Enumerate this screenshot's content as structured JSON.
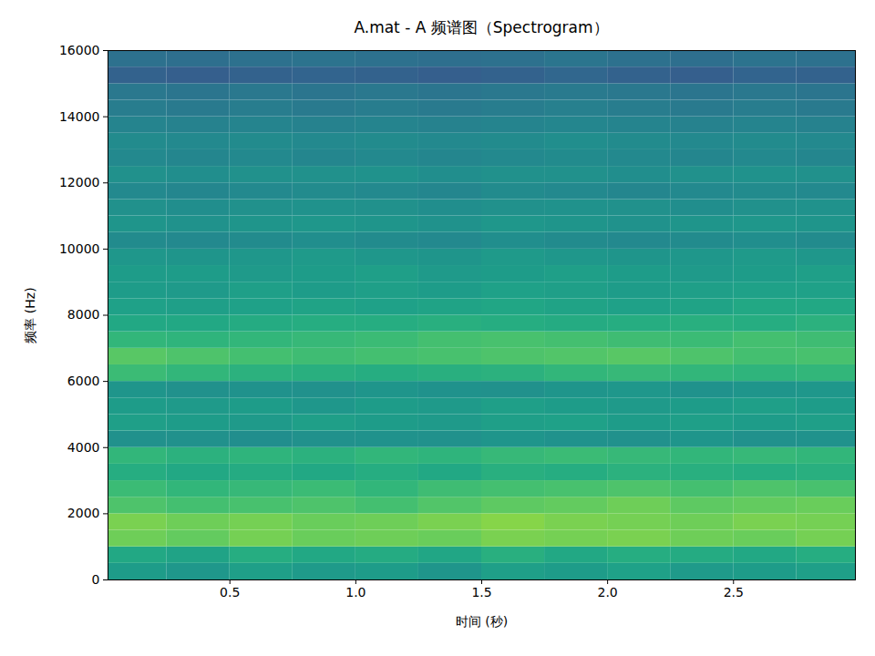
{
  "chart_data": {
    "type": "heatmap",
    "title": "A.mat - A 频谱图（Spectrogram）",
    "x_label": "时间 (秒)",
    "y_label": "频率 (Hz)",
    "xlim": [
      0.016,
      2.984
    ],
    "ylim": [
      0,
      16000
    ],
    "xticks": [
      {
        "value": 0.5,
        "label": "0.5"
      },
      {
        "value": 1,
        "label": "1.0"
      },
      {
        "value": 1.5,
        "label": "1.5"
      },
      {
        "value": 2,
        "label": "2.0"
      },
      {
        "value": 2.5,
        "label": "2.5"
      }
    ],
    "yticks": [
      0,
      2000,
      4000,
      6000,
      8000,
      10000,
      12000,
      14000,
      16000
    ],
    "color": "viridis",
    "zlim": [
      0,
      1
    ],
    "time_edges": [
      0,
      0.25,
      0.5,
      0.75,
      1,
      1.25,
      1.5,
      1.75,
      2,
      2.25,
      2.5,
      2.75,
      3
    ],
    "frequency_edges": [
      0,
      500,
      1000,
      1500,
      2000,
      2500,
      3000,
      3500,
      4000,
      4500,
      5000,
      5500,
      6000,
      6500,
      7000,
      7500,
      8000,
      8500,
      9000,
      9500,
      10000,
      10500,
      11000,
      11500,
      12000,
      12500,
      13000,
      13500,
      14000,
      14500,
      15000,
      15500,
      16000
    ],
    "cells": [
      [
        0.55,
        0.53,
        0.56,
        0.54,
        0.55,
        0.52,
        0.56,
        0.55,
        0.57,
        0.54,
        0.55,
        0.56
      ],
      [
        0.6,
        0.58,
        0.62,
        0.6,
        0.61,
        0.59,
        0.63,
        0.6,
        0.62,
        0.61,
        0.6,
        0.62
      ],
      [
        0.78,
        0.76,
        0.79,
        0.77,
        0.78,
        0.77,
        0.8,
        0.79,
        0.8,
        0.78,
        0.77,
        0.79
      ],
      [
        0.8,
        0.78,
        0.79,
        0.77,
        0.78,
        0.8,
        0.82,
        0.8,
        0.79,
        0.78,
        0.8,
        0.79
      ],
      [
        0.72,
        0.7,
        0.71,
        0.72,
        0.7,
        0.73,
        0.75,
        0.76,
        0.78,
        0.75,
        0.76,
        0.77
      ],
      [
        0.68,
        0.66,
        0.67,
        0.68,
        0.66,
        0.69,
        0.7,
        0.71,
        0.72,
        0.7,
        0.72,
        0.71
      ],
      [
        0.62,
        0.6,
        0.61,
        0.6,
        0.62,
        0.6,
        0.63,
        0.62,
        0.64,
        0.63,
        0.62,
        0.63
      ],
      [
        0.66,
        0.64,
        0.65,
        0.64,
        0.66,
        0.65,
        0.67,
        0.68,
        0.67,
        0.66,
        0.67,
        0.66
      ],
      [
        0.5,
        0.5,
        0.49,
        0.5,
        0.51,
        0.5,
        0.52,
        0.51,
        0.5,
        0.52,
        0.5,
        0.51
      ],
      [
        0.56,
        0.55,
        0.54,
        0.56,
        0.55,
        0.54,
        0.56,
        0.57,
        0.55,
        0.56,
        0.55,
        0.56
      ],
      [
        0.55,
        0.54,
        0.55,
        0.53,
        0.55,
        0.54,
        0.56,
        0.55,
        0.54,
        0.55,
        0.56,
        0.55
      ],
      [
        0.52,
        0.5,
        0.51,
        0.5,
        0.52,
        0.51,
        0.5,
        0.52,
        0.53,
        0.51,
        0.52,
        0.53
      ],
      [
        0.68,
        0.66,
        0.64,
        0.63,
        0.62,
        0.63,
        0.64,
        0.66,
        0.67,
        0.66,
        0.65,
        0.66
      ],
      [
        0.74,
        0.72,
        0.7,
        0.69,
        0.7,
        0.71,
        0.72,
        0.73,
        0.74,
        0.72,
        0.7,
        0.71
      ],
      [
        0.66,
        0.65,
        0.66,
        0.67,
        0.68,
        0.7,
        0.71,
        0.7,
        0.69,
        0.68,
        0.7,
        0.69
      ],
      [
        0.6,
        0.6,
        0.61,
        0.62,
        0.62,
        0.63,
        0.62,
        0.61,
        0.62,
        0.63,
        0.62,
        0.64
      ],
      [
        0.57,
        0.56,
        0.57,
        0.58,
        0.57,
        0.58,
        0.59,
        0.58,
        0.57,
        0.58,
        0.6,
        0.6
      ],
      [
        0.55,
        0.54,
        0.56,
        0.55,
        0.56,
        0.55,
        0.57,
        0.56,
        0.55,
        0.56,
        0.57,
        0.57
      ],
      [
        0.55,
        0.55,
        0.54,
        0.55,
        0.56,
        0.54,
        0.55,
        0.56,
        0.55,
        0.54,
        0.55,
        0.56
      ],
      [
        0.53,
        0.52,
        0.53,
        0.54,
        0.53,
        0.52,
        0.54,
        0.53,
        0.52,
        0.53,
        0.54,
        0.53
      ],
      [
        0.48,
        0.47,
        0.48,
        0.49,
        0.48,
        0.47,
        0.49,
        0.48,
        0.47,
        0.48,
        0.49,
        0.48
      ],
      [
        0.52,
        0.51,
        0.52,
        0.53,
        0.52,
        0.51,
        0.53,
        0.52,
        0.51,
        0.52,
        0.53,
        0.52
      ],
      [
        0.5,
        0.49,
        0.5,
        0.51,
        0.5,
        0.49,
        0.5,
        0.51,
        0.5,
        0.49,
        0.5,
        0.51
      ],
      [
        0.47,
        0.46,
        0.47,
        0.48,
        0.47,
        0.46,
        0.48,
        0.47,
        0.46,
        0.47,
        0.48,
        0.47
      ],
      [
        0.5,
        0.49,
        0.5,
        0.5,
        0.51,
        0.49,
        0.5,
        0.5,
        0.49,
        0.5,
        0.51,
        0.5
      ],
      [
        0.47,
        0.46,
        0.47,
        0.46,
        0.47,
        0.46,
        0.47,
        0.48,
        0.47,
        0.46,
        0.47,
        0.46
      ],
      [
        0.48,
        0.47,
        0.48,
        0.47,
        0.48,
        0.47,
        0.48,
        0.49,
        0.48,
        0.47,
        0.48,
        0.47
      ],
      [
        0.45,
        0.44,
        0.45,
        0.44,
        0.45,
        0.44,
        0.45,
        0.46,
        0.45,
        0.44,
        0.45,
        0.44
      ],
      [
        0.42,
        0.41,
        0.42,
        0.41,
        0.42,
        0.41,
        0.42,
        0.43,
        0.42,
        0.41,
        0.42,
        0.41
      ],
      [
        0.4,
        0.39,
        0.4,
        0.39,
        0.4,
        0.39,
        0.4,
        0.41,
        0.4,
        0.39,
        0.4,
        0.39
      ],
      [
        0.31,
        0.3,
        0.31,
        0.32,
        0.31,
        0.3,
        0.31,
        0.33,
        0.31,
        0.3,
        0.32,
        0.31
      ],
      [
        0.37,
        0.36,
        0.37,
        0.38,
        0.37,
        0.36,
        0.37,
        0.39,
        0.37,
        0.36,
        0.38,
        0.37
      ]
    ]
  }
}
